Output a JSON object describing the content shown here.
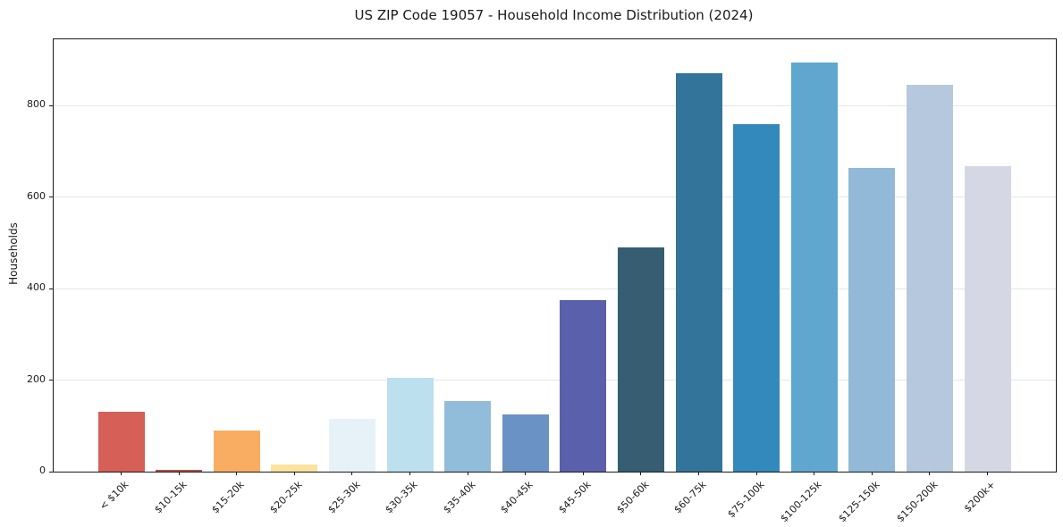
{
  "chart_data": {
    "type": "bar",
    "title": "US ZIP Code 19057 - Household Income Distribution (2024)",
    "xlabel": "",
    "ylabel": "Households",
    "categories": [
      "< $10k",
      "$10-15k",
      "$15-20k",
      "$20-25k",
      "$25-30k",
      "$30-35k",
      "$35-40k",
      "$40-45k",
      "$45-50k",
      "$50-60k",
      "$60-75k",
      "$75-100k",
      "$100-125k",
      "$125-150k",
      "$150-200k",
      "$200k+"
    ],
    "values": [
      130,
      4,
      90,
      15,
      115,
      205,
      155,
      125,
      375,
      490,
      870,
      760,
      895,
      663,
      845,
      667
    ],
    "bar_colors": [
      "#d65f57",
      "#a9554b",
      "#f9ad63",
      "#fbe39e",
      "#e7f1f8",
      "#bce0ee",
      "#92bdda",
      "#6a92c5",
      "#5a60ab",
      "#365d72",
      "#33749a",
      "#3489bc",
      "#5fa7ce",
      "#92b9d7",
      "#b5c8de",
      "#d5d8e4"
    ],
    "yticks": [
      0,
      200,
      400,
      600,
      800
    ],
    "ylim": [
      0,
      945
    ],
    "grid": "horizontal",
    "legend_position": "none",
    "background_color": "#ffffff",
    "gridline_color": "#e6e6e6",
    "spine_color": "#1a1a1a"
  }
}
